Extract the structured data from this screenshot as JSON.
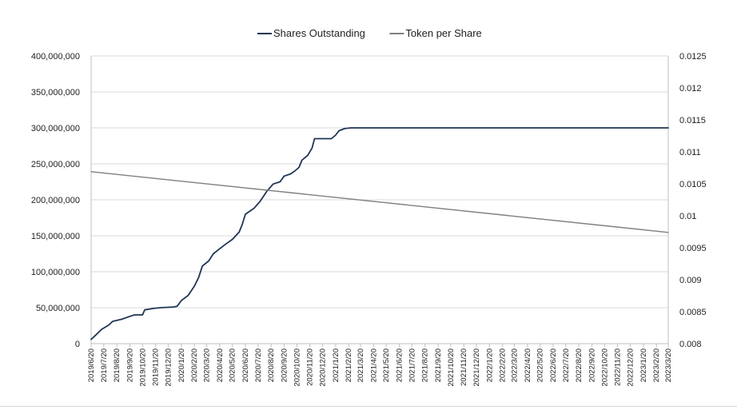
{
  "chart_data": {
    "type": "line",
    "title": "",
    "grid": "horizontal",
    "legend_position": "top-center",
    "colors": {
      "shares": "#1f3554",
      "token": "#7f7f7f",
      "grid": "#d9d9d9"
    },
    "series": [
      {
        "name": "Shares Outstanding",
        "axis": "left",
        "points": [
          [
            "2019-06-20",
            6000000
          ],
          [
            "2019-07-01",
            12000000
          ],
          [
            "2019-07-15",
            20000000
          ],
          [
            "2019-08-01",
            26000000
          ],
          [
            "2019-08-10",
            31000000
          ],
          [
            "2019-09-01",
            34000000
          ],
          [
            "2019-09-20",
            38000000
          ],
          [
            "2019-10-01",
            40000000
          ],
          [
            "2019-10-20",
            40000000
          ],
          [
            "2019-10-25",
            47000000
          ],
          [
            "2019-11-15",
            49000000
          ],
          [
            "2019-12-01",
            50000000
          ],
          [
            "2020-01-01",
            51000000
          ],
          [
            "2020-01-10",
            52000000
          ],
          [
            "2020-01-20",
            60000000
          ],
          [
            "2020-02-05",
            67000000
          ],
          [
            "2020-02-20",
            80000000
          ],
          [
            "2020-03-01",
            92000000
          ],
          [
            "2020-03-10",
            108000000
          ],
          [
            "2020-03-25",
            115000000
          ],
          [
            "2020-04-05",
            125000000
          ],
          [
            "2020-04-20",
            132000000
          ],
          [
            "2020-05-01",
            137000000
          ],
          [
            "2020-05-20",
            145000000
          ],
          [
            "2020-06-05",
            155000000
          ],
          [
            "2020-06-12",
            165000000
          ],
          [
            "2020-06-20",
            180000000
          ],
          [
            "2020-07-10",
            188000000
          ],
          [
            "2020-07-25",
            198000000
          ],
          [
            "2020-08-10",
            212000000
          ],
          [
            "2020-08-25",
            222000000
          ],
          [
            "2020-09-10",
            225000000
          ],
          [
            "2020-09-20",
            233000000
          ],
          [
            "2020-10-05",
            236000000
          ],
          [
            "2020-10-15",
            240000000
          ],
          [
            "2020-10-25",
            245000000
          ],
          [
            "2020-11-01",
            255000000
          ],
          [
            "2020-11-15",
            262000000
          ],
          [
            "2020-11-25",
            272000000
          ],
          [
            "2020-12-01",
            285000000
          ],
          [
            "2020-12-20",
            285000000
          ],
          [
            "2021-01-10",
            285000000
          ],
          [
            "2021-01-20",
            290000000
          ],
          [
            "2021-01-28",
            296000000
          ],
          [
            "2021-02-10",
            299000000
          ],
          [
            "2021-02-25",
            300000000
          ],
          [
            "2023-03-20",
            300000000
          ]
        ]
      },
      {
        "name": "Token per Share",
        "axis": "right",
        "points": [
          [
            "2019-06-20",
            0.01069
          ],
          [
            "2023-03-20",
            0.00974
          ]
        ]
      }
    ],
    "y_left": {
      "min": 0,
      "max": 400000000,
      "ticks": [
        "0",
        "50,000,000",
        "100,000,000",
        "150,000,000",
        "200,000,000",
        "250,000,000",
        "300,000,000",
        "350,000,000",
        "400,000,000"
      ]
    },
    "y_right": {
      "min": 0.008,
      "max": 0.0125,
      "ticks": [
        "0.008",
        "0.0085",
        "0.009",
        "0.0095",
        "0.01",
        "0.0105",
        "0.011",
        "0.0115",
        "0.012",
        "0.0125"
      ]
    },
    "x_ticks": [
      "2019/6/20",
      "2019/7/20",
      "2019/8/20",
      "2019/9/20",
      "2019/10/20",
      "2019/11/20",
      "2019/12/20",
      "2020/1/20",
      "2020/2/20",
      "2020/3/20",
      "2020/4/20",
      "2020/5/20",
      "2020/6/20",
      "2020/7/20",
      "2020/8/20",
      "2020/9/20",
      "2020/10/20",
      "2020/11/20",
      "2020/12/20",
      "2021/1/20",
      "2021/2/20",
      "2021/3/20",
      "2021/4/20",
      "2021/5/20",
      "2021/6/20",
      "2021/7/20",
      "2021/8/20",
      "2021/9/20",
      "2021/10/20",
      "2021/11/20",
      "2021/12/20",
      "2022/1/20",
      "2022/2/20",
      "2022/3/20",
      "2022/4/20",
      "2022/5/20",
      "2022/6/20",
      "2022/7/20",
      "2022/8/20",
      "2022/9/20",
      "2022/10/20",
      "2022/11/20",
      "2022/12/20",
      "2023/1/20",
      "2023/2/20",
      "2023/3/20"
    ]
  }
}
